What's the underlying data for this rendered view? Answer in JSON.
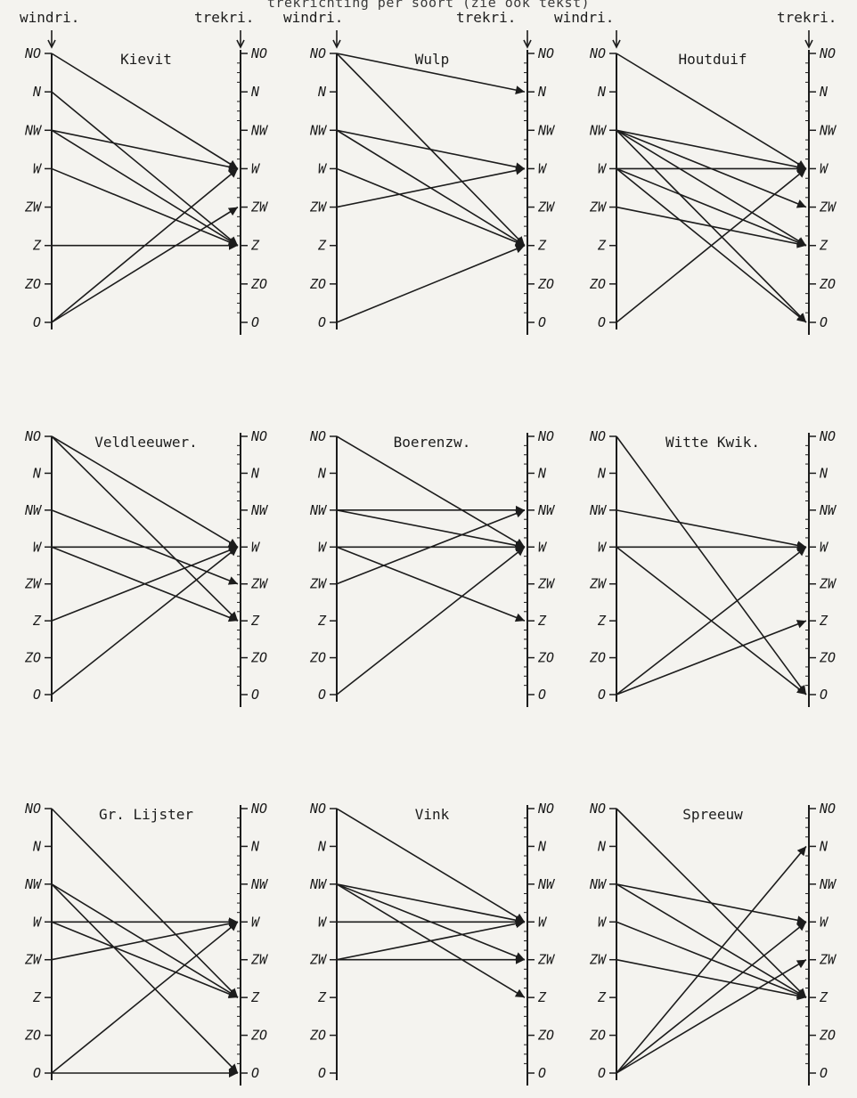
{
  "heading": "trekrichting per soort (zie ook tekst)",
  "column_labels": {
    "windri": "windri.",
    "trekri": "trekri."
  },
  "axis_ticks": [
    "NO",
    "N",
    "NW",
    "W",
    "ZW",
    "Z",
    "ZO",
    "O"
  ],
  "panels": [
    {
      "title": "Kievit",
      "links": [
        [
          "NO",
          "W"
        ],
        [
          "N",
          "Z"
        ],
        [
          "NW",
          "W"
        ],
        [
          "NW",
          "Z"
        ],
        [
          "W",
          "Z"
        ],
        [
          "Z",
          "Z"
        ],
        [
          "O",
          "W"
        ],
        [
          "O",
          "ZW"
        ]
      ]
    },
    {
      "title": "Wulp",
      "links": [
        [
          "NO",
          "N"
        ],
        [
          "NO",
          "Z"
        ],
        [
          "NW",
          "W"
        ],
        [
          "NW",
          "Z"
        ],
        [
          "W",
          "Z"
        ],
        [
          "ZW",
          "W"
        ],
        [
          "O",
          "Z"
        ]
      ]
    },
    {
      "title": "Houtduif",
      "links": [
        [
          "NO",
          "W"
        ],
        [
          "NW",
          "W"
        ],
        [
          "NW",
          "ZW"
        ],
        [
          "NW",
          "Z"
        ],
        [
          "NW",
          "O"
        ],
        [
          "W",
          "W"
        ],
        [
          "W",
          "Z"
        ],
        [
          "W",
          "O"
        ],
        [
          "ZW",
          "Z"
        ],
        [
          "O",
          "W"
        ]
      ]
    },
    {
      "title": "Veldleeuwer.",
      "links": [
        [
          "NO",
          "W"
        ],
        [
          "NO",
          "Z"
        ],
        [
          "NW",
          "ZW"
        ],
        [
          "W",
          "W"
        ],
        [
          "W",
          "Z"
        ],
        [
          "Z",
          "W"
        ],
        [
          "O",
          "W"
        ]
      ]
    },
    {
      "title": "Boerenzw.",
      "links": [
        [
          "NO",
          "W"
        ],
        [
          "NW",
          "NW"
        ],
        [
          "NW",
          "W"
        ],
        [
          "W",
          "W"
        ],
        [
          "W",
          "Z"
        ],
        [
          "ZW",
          "NW"
        ],
        [
          "O",
          "W"
        ]
      ]
    },
    {
      "title": "Witte Kwik.",
      "links": [
        [
          "NO",
          "O"
        ],
        [
          "NW",
          "W"
        ],
        [
          "W",
          "W"
        ],
        [
          "W",
          "O"
        ],
        [
          "O",
          "W"
        ],
        [
          "O",
          "Z"
        ]
      ]
    },
    {
      "title": "Gr. Lijster",
      "links": [
        [
          "NO",
          "Z"
        ],
        [
          "NW",
          "Z"
        ],
        [
          "NW",
          "O"
        ],
        [
          "W",
          "W"
        ],
        [
          "W",
          "Z"
        ],
        [
          "ZW",
          "W"
        ],
        [
          "O",
          "W"
        ],
        [
          "O",
          "O"
        ]
      ]
    },
    {
      "title": "Vink",
      "links": [
        [
          "NO",
          "W"
        ],
        [
          "NW",
          "W"
        ],
        [
          "NW",
          "ZW"
        ],
        [
          "NW",
          "Z"
        ],
        [
          "W",
          "W"
        ],
        [
          "ZW",
          "ZW"
        ],
        [
          "ZW",
          "W"
        ]
      ]
    },
    {
      "title": "Spreeuw",
      "links": [
        [
          "NO",
          "Z"
        ],
        [
          "NW",
          "W"
        ],
        [
          "NW",
          "Z"
        ],
        [
          "W",
          "Z"
        ],
        [
          "ZW",
          "Z"
        ],
        [
          "O",
          "N"
        ],
        [
          "O",
          "ZW"
        ],
        [
          "O",
          "W"
        ]
      ]
    }
  ],
  "colors": {
    "ink": "#1c1c1c",
    "paper": "#f4f3ef"
  }
}
